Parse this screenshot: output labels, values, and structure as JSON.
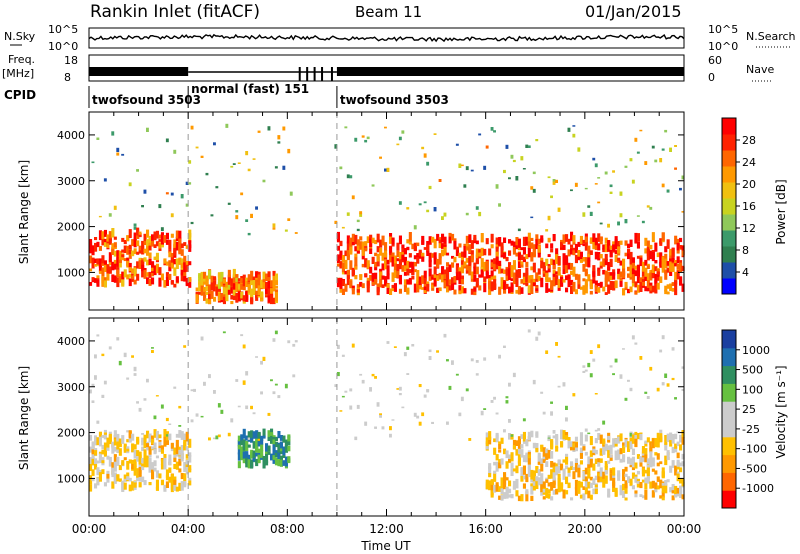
{
  "header": {
    "station": "Rankin Inlet (fitACF)",
    "beam": "Beam 11",
    "date": "01/Jan/2015"
  },
  "summary": {
    "nsky_label": "N.Sky",
    "nsky_ticks": [
      "10^5",
      "10^0"
    ],
    "nsearch_label": "N.Search",
    "nsearch_ticks": [
      "10^5",
      "10^0"
    ],
    "freq_label_1": "Freq.",
    "freq_label_2": "[MHz]",
    "freq_ticks": [
      "18",
      "8"
    ],
    "nave_label": "Nave",
    "nave_ticks": [
      "60",
      "0"
    ],
    "cpid_label": "CPID",
    "cpid_segments": [
      {
        "name": "twofsound 3503",
        "start_h": 0,
        "end_h": 4
      },
      {
        "name": "normal (fast) 151",
        "start_h": 4,
        "end_h": 10
      },
      {
        "name": "twofsound 3503",
        "start_h": 10,
        "end_h": 24
      }
    ]
  },
  "colors": {
    "power_scale": [
      "#0000ff",
      "#1e4fa8",
      "#2f7f4f",
      "#3c9a6a",
      "#8fc85a",
      "#c8d320",
      "#f0c010",
      "#ff9900",
      "#ff6600",
      "#ff2200",
      "#ff0000"
    ],
    "velocity_scale": [
      "#ff0000",
      "#ff6600",
      "#ff9900",
      "#ffc000",
      "#cccccc",
      "#cccccc",
      "#66c040",
      "#2f8f60",
      "#1e6fb0",
      "#1a3fa0"
    ]
  },
  "chart_data": [
    {
      "type": "heatmap",
      "name": "power",
      "xlabel": "",
      "ylabel": "Slant Range [km]",
      "x_ticks": [
        "00:00",
        "04:00",
        "08:00",
        "12:00",
        "16:00",
        "20:00",
        "00:00"
      ],
      "y_ticks": [
        "1000",
        "2000",
        "3000",
        "4000"
      ],
      "xlim_hours": [
        0,
        24
      ],
      "ylim_km": [
        180,
        4500
      ],
      "colorbar": {
        "label": "Power [dB]",
        "ticks": [
          "28",
          "24",
          "20",
          "16",
          "12",
          "8",
          "4"
        ],
        "range": [
          0,
          30
        ]
      },
      "dominant_bands": [
        {
          "from_h": 0,
          "to_h": 4,
          "range_km": [
            650,
            1800
          ],
          "value_db": 24
        },
        {
          "from_h": 4.3,
          "to_h": 7.5,
          "range_km": [
            300,
            900
          ],
          "value_db": 22
        },
        {
          "from_h": 10,
          "to_h": 24,
          "range_km": [
            500,
            1700
          ],
          "value_db": 25
        }
      ]
    },
    {
      "type": "heatmap",
      "name": "velocity",
      "xlabel": "Time UT",
      "ylabel": "Slant Range [km]",
      "x_ticks": [
        "00:00",
        "04:00",
        "08:00",
        "12:00",
        "16:00",
        "20:00",
        "00:00"
      ],
      "y_ticks": [
        "1000",
        "2000",
        "3000",
        "4000"
      ],
      "xlim_hours": [
        0,
        24
      ],
      "ylim_km": [
        180,
        4500
      ],
      "colorbar": {
        "label": "Velocity [m s⁻¹]",
        "ticks": [
          "1000",
          "500",
          "100",
          "25",
          "-25",
          "-100",
          "-500",
          "-1000"
        ],
        "range": [
          -1200,
          1200
        ]
      },
      "dominant_bands": [
        {
          "from_h": 0,
          "to_h": 4,
          "range_km": [
            700,
            1900
          ],
          "value_ms": -250
        },
        {
          "from_h": 6,
          "to_h": 8,
          "range_km": [
            1200,
            1900
          ],
          "value_ms": 600
        },
        {
          "from_h": 16,
          "to_h": 24,
          "range_km": [
            500,
            1900
          ],
          "value_ms": -300
        }
      ]
    }
  ]
}
